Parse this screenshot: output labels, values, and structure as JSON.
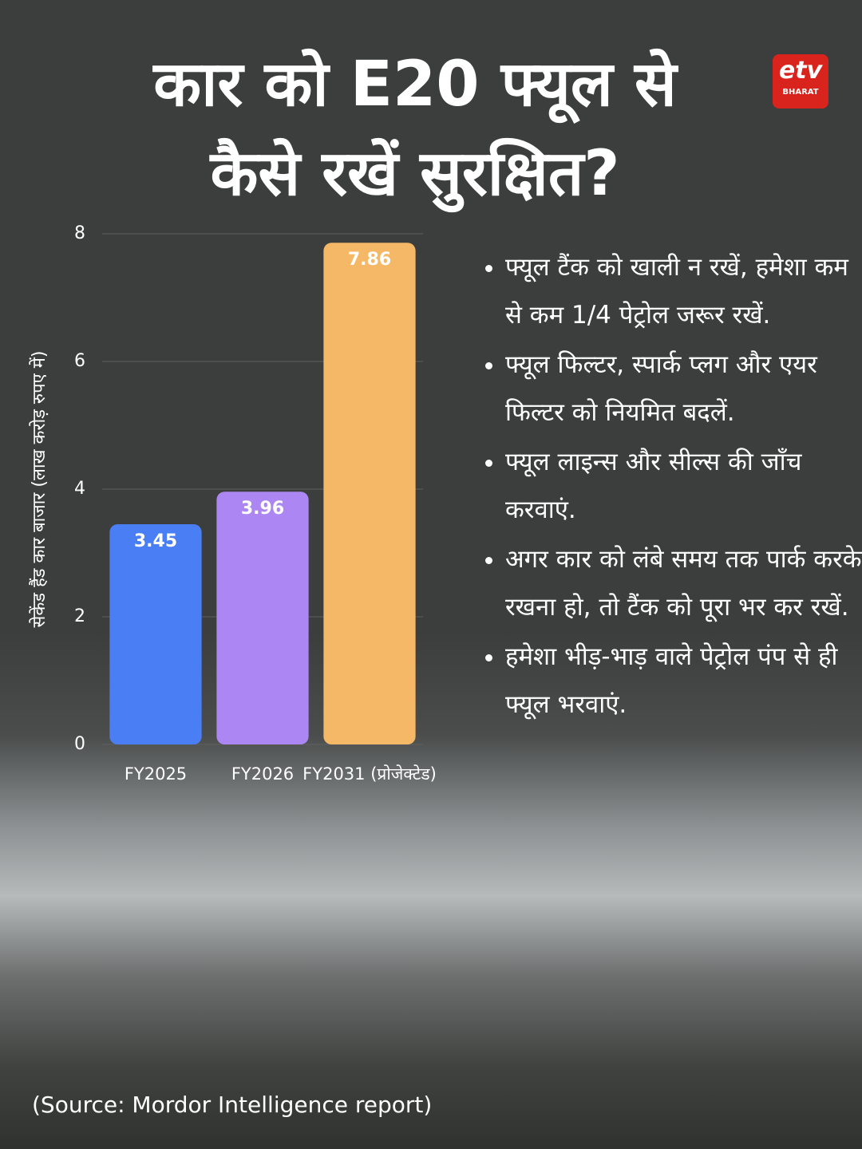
{
  "brand": "etv",
  "brand_sub": "BHARAT",
  "chart_data": {
    "type": "bar",
    "title": "कार को E20 फ्यूल से कैसे रखें सुरक्षित?",
    "y_label": "सेकेंड हैंड कार बाजार (लाख करोड़ रुपए में)",
    "categories": [
      "FY2025",
      "FY2026",
      "FY2031 (प्रोजेक्टेड)"
    ],
    "values": [
      3.45,
      3.96,
      7.86
    ],
    "colors": [
      "#4a7ef5",
      "#ac87f4",
      "#f4b866"
    ],
    "ylim": [
      0,
      8
    ],
    "yticks": [
      0,
      2,
      4,
      6,
      8
    ],
    "grid": true
  },
  "bullets": [
    "फ्यूल टैंक को खाली न रखें, हमेशा कम से कम 1/4 पेट्रोल जरूर रखें.",
    "फ्यूल फिल्टर, स्पार्क प्लग और एयर फिल्टर को नियमित बदलें.",
    "फ्यूल लाइन्स और सील्स की जाँच करवाएं.",
    "अगर कार को लंबे समय तक पार्क करके रखना हो, तो टैंक को पूरा भर कर रखें.",
    "हमेशा भीड़-भाड़ वाले पेट्रोल पंप से ही फ्यूल भरवाएं."
  ],
  "source": "(Source: Mordor Intelligence report)"
}
